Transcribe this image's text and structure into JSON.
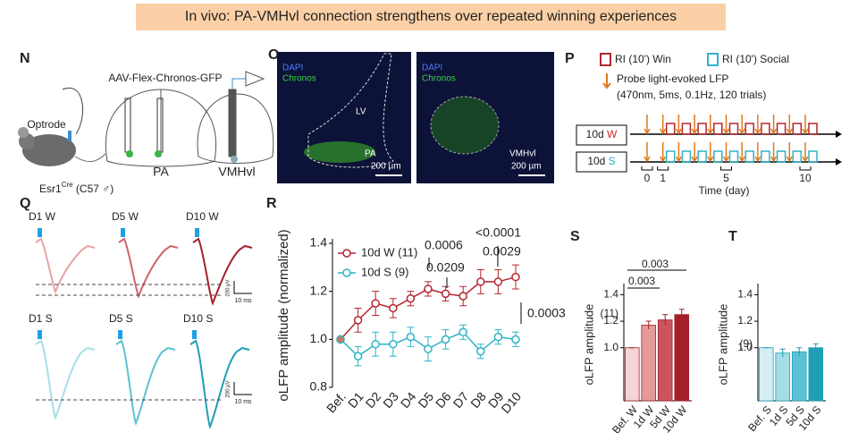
{
  "header": {
    "title": "In vivo: PA-VMHvl connection strengthens over repeated winning experiences"
  },
  "panels": {
    "N": {
      "letter": "N",
      "virus": "AAV-Flex-Chronos-GFP",
      "optrode": "Optrode",
      "region1": "PA",
      "region2": "VMHvl",
      "mouse": {
        "base": "Esr1",
        "sup": "Cre",
        "rest": " (C57 ♂)"
      }
    },
    "O": {
      "letter": "O",
      "stain1": "DAPI",
      "stain2": "Chronos",
      "lv": "LV",
      "pa": "PA",
      "scale1": "200 µm",
      "vmhvl": "VMHvl",
      "scale2": "200 µm"
    },
    "P": {
      "letter": "P",
      "legend_win": "RI (10') Win",
      "legend_social": "RI (10') Social",
      "probe": "Probe light-evoked LFP",
      "probe_detail": "(470nm, 5ms, 0.1Hz, 120 trials)",
      "row_w": {
        "prefix": "10d ",
        "letter": "W"
      },
      "row_s": {
        "prefix": "10d ",
        "letter": "S"
      },
      "xticks": [
        0,
        1,
        5,
        10
      ],
      "xlabel": "Time (day)"
    },
    "Q": {
      "letter": "Q",
      "labels": [
        "D1 W",
        "D5 W",
        "D10 W",
        "D1 S",
        "D5 S",
        "D10 S"
      ],
      "scale_v": "200 µV",
      "scale_t": "10 ms"
    },
    "R": {
      "letter": "R"
    },
    "S": {
      "letter": "S"
    },
    "T": {
      "letter": "T"
    }
  },
  "chart_data": [
    {
      "type": "line",
      "ylabel": "oLFP amplitude (normalized)",
      "categories": [
        "Bef.",
        "D1",
        "D2",
        "D3",
        "D4",
        "D5",
        "D6",
        "D7",
        "D8",
        "D9",
        "D10"
      ],
      "ylim": [
        0.8,
        1.4
      ],
      "yticks": [
        {
          "value": 0.8,
          "label": "0.8"
        },
        {
          "value": 1.0,
          "label": "1.0"
        },
        {
          "value": 1.2,
          "label": "1.2"
        },
        {
          "value": 1.4,
          "label": "1.4"
        }
      ],
      "series": [
        {
          "name": "10d W (11)",
          "color": "#b3262e",
          "values": [
            1.0,
            1.08,
            1.15,
            1.13,
            1.17,
            1.21,
            1.19,
            1.18,
            1.24,
            1.24,
            1.26
          ],
          "errors": [
            0,
            0.05,
            0.05,
            0.04,
            0.03,
            0.03,
            0.03,
            0.04,
            0.05,
            0.05,
            0.05
          ]
        },
        {
          "name": "10d S (9)",
          "color": "#2eb4c8",
          "values": [
            1.0,
            0.93,
            0.98,
            0.98,
            1.01,
            0.96,
            1.0,
            1.03,
            0.95,
            1.01,
            1.0
          ],
          "errors": [
            0,
            0.04,
            0.05,
            0.05,
            0.04,
            0.05,
            0.04,
            0.03,
            0.03,
            0.03,
            0.03
          ]
        }
      ],
      "annotations": [
        "0.0006",
        "0.0209",
        "<0.0001",
        "0.0029",
        "0.0003"
      ]
    },
    {
      "type": "bar",
      "ylabel": "oLFP amplitude",
      "categories": [
        "Bef. W",
        "1d W",
        "5d W",
        "10d W"
      ],
      "values": [
        1.0,
        1.17,
        1.21,
        1.25
      ],
      "errors": [
        0,
        0.03,
        0.04,
        0.04
      ],
      "colors": [
        "#f4d4d4",
        "#e59a9a",
        "#c9565c",
        "#a3202a"
      ],
      "ylim": [
        0.6,
        1.45
      ],
      "yticks": [
        {
          "value": 1.0,
          "label": "1.0"
        },
        {
          "value": 1.2,
          "label": "1.2"
        },
        {
          "value": 1.4,
          "label": "1.4"
        }
      ],
      "annotations": [
        "0.003",
        "0.003",
        "(11)"
      ]
    },
    {
      "type": "bar",
      "ylabel": "oLFP amplitude",
      "categories": [
        "Bef. S",
        "1d S",
        "5d S",
        "10d S"
      ],
      "values": [
        1.0,
        0.96,
        0.97,
        1.0
      ],
      "errors": [
        0,
        0.03,
        0.03,
        0.03
      ],
      "colors": [
        "#d4eef3",
        "#a5dce6",
        "#5cc2d3",
        "#1f9fb5"
      ],
      "ylim": [
        0.6,
        1.45
      ],
      "yticks": [
        {
          "value": 1.0,
          "label": "1.0"
        },
        {
          "value": 1.2,
          "label": "1.2"
        },
        {
          "value": 1.4,
          "label": "1.4"
        }
      ],
      "annotations": [
        "(9)"
      ]
    }
  ]
}
